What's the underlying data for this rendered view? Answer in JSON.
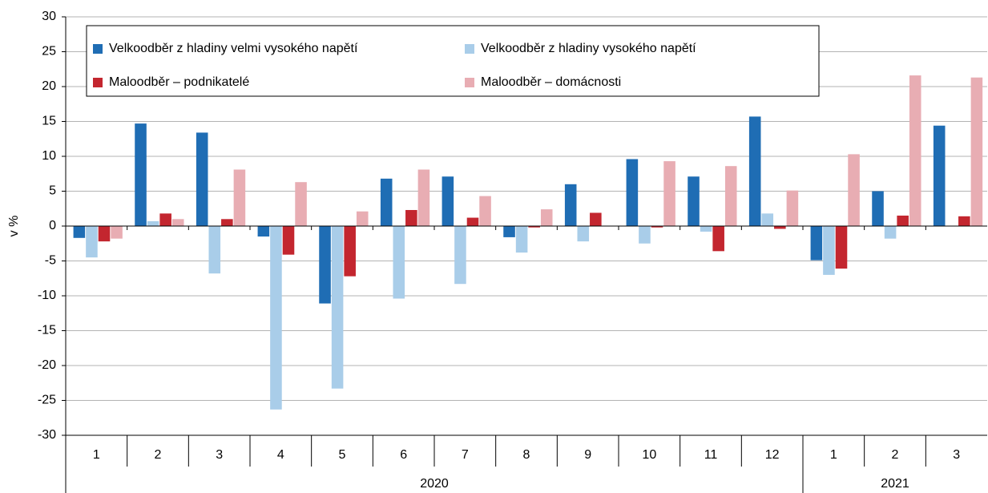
{
  "chart_data": {
    "type": "bar",
    "y_label": "v %",
    "category_groups": [
      {
        "name": "2020",
        "categories": [
          "1",
          "2",
          "3",
          "4",
          "5",
          "6",
          "7",
          "8",
          "9",
          "10",
          "11",
          "12"
        ]
      },
      {
        "name": "2021",
        "categories": [
          "1",
          "2",
          "3"
        ]
      }
    ],
    "series": [
      {
        "name": "Velkoodběr z hladiny velmi vysokého napětí",
        "color": "#1f6db4",
        "values": [
          -1.7,
          14.7,
          13.4,
          -1.5,
          -11.1,
          6.8,
          7.1,
          -1.6,
          6.0,
          9.6,
          7.1,
          15.7,
          -4.9,
          5.0,
          14.4
        ]
      },
      {
        "name": "Velkoodběr z hladiny vysokého napětí",
        "color": "#a9cde9",
        "values": [
          -4.5,
          0.7,
          -6.8,
          -26.3,
          -23.3,
          -10.4,
          -8.3,
          -3.8,
          -2.2,
          -2.5,
          -0.8,
          1.8,
          -7.0,
          -1.8,
          0
        ]
      },
      {
        "name": "Maloodběr – podnikatelé",
        "color": "#c3262f",
        "values": [
          -2.2,
          1.8,
          1.0,
          -4.1,
          -7.2,
          2.3,
          1.2,
          -0.2,
          1.9,
          -0.2,
          -3.6,
          -0.4,
          -6.1,
          1.5,
          1.4
        ]
      },
      {
        "name": "Maloodběr – domácnosti",
        "color": "#e8adb3",
        "values": [
          -1.8,
          1.0,
          8.1,
          6.3,
          2.1,
          8.1,
          4.3,
          2.4,
          0,
          9.3,
          8.6,
          5.1,
          10.3,
          21.6,
          21.3
        ]
      }
    ],
    "ylim": [
      -30,
      30
    ],
    "yticks": [
      -30,
      -25,
      -20,
      -15,
      -10,
      -5,
      0,
      5,
      10,
      15,
      20,
      25,
      30
    ],
    "grid": true,
    "legend": "upper left"
  }
}
